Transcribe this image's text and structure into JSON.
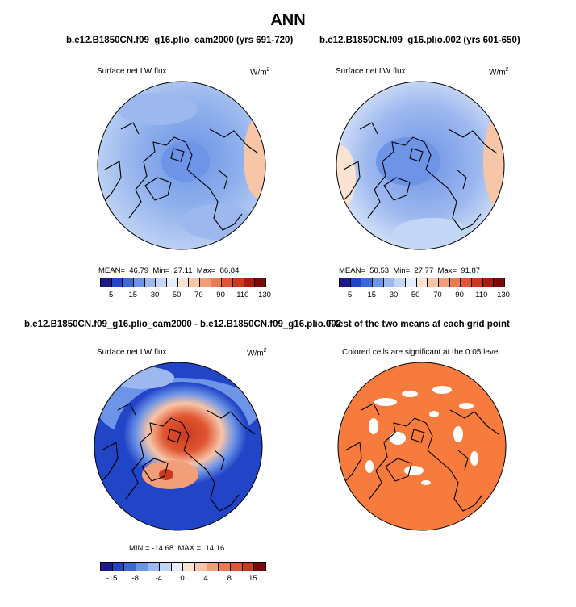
{
  "title": "ANN",
  "panels": {
    "p1": {
      "title": "b.e12.B1850CN.f09_g16.plio_cam2000 (yrs 691-720)",
      "variable": "Surface net LW flux",
      "units": "W/m",
      "units_sup": "2",
      "stats": "MEAN=  46.79  Min=  27.11  Max=  86.84"
    },
    "p2": {
      "title": "b.e12.B1850CN.f09_g16.plio.002 (yrs 601-650)",
      "variable": "Surface net LW flux",
      "units": "W/m",
      "units_sup": "2",
      "stats": "MEAN=  50.53  Min=  27.77  Max=  91.87"
    },
    "p3": {
      "title": "b.e12.B1850CN.f09_g16.plio_cam2000 - b.e12.B1850CN.f09_g16.plio.002",
      "variable": "Surface net LW flux",
      "units": "W/m",
      "units_sup": "2",
      "stats": "MIN = -14.68  MAX =  14.16"
    },
    "p4": {
      "title": "T-test of the two means at each grid point",
      "note": "Colored cells are significant at the 0.05 level"
    }
  },
  "colorbars": {
    "abs": {
      "labels": [
        "5",
        "15",
        "30",
        "50",
        "70",
        "90",
        "110",
        "130"
      ],
      "colors": [
        "#1a1a8a",
        "#2245c8",
        "#3b6ad8",
        "#6d94e6",
        "#9db8ef",
        "#c4d6f5",
        "#e5eefa",
        "#fbe3d3",
        "#f7c5a8",
        "#f29f79",
        "#ec7b4f",
        "#e15530",
        "#c93a1f",
        "#a81c12",
        "#7c0a0a"
      ]
    },
    "diff": {
      "labels": [
        "-15",
        "-8",
        "-4",
        "0",
        "4",
        "8",
        "15"
      ],
      "colors": [
        "#1a1a8a",
        "#2245c8",
        "#3b6ad8",
        "#6d94e6",
        "#9db8ef",
        "#c4d6f5",
        "#e5eefa",
        "#fbe3d3",
        "#f7c5a8",
        "#f29f79",
        "#ec7b4f",
        "#e15530",
        "#c93a1f",
        "#7c0a0a"
      ]
    }
  }
}
